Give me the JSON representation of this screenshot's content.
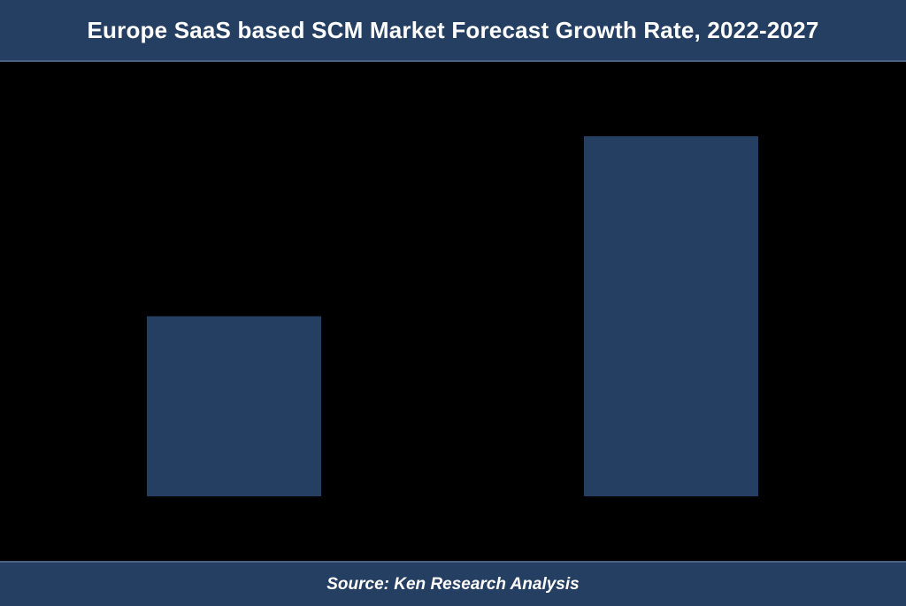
{
  "colors": {
    "background": "#000000",
    "banner": "#253f62",
    "bar": "#253f62",
    "text": "#ffffff"
  },
  "chart_data": {
    "type": "bar",
    "title": "Europe SaaS based SCM Market Forecast Growth Rate, 2022-2027",
    "categories": [
      "",
      ""
    ],
    "values": [
      50,
      100
    ],
    "ylim": [
      0,
      100
    ],
    "xlabel": "",
    "ylabel": "",
    "grid": false,
    "legend": "none"
  },
  "source": {
    "text": "Source: Ken Research Analysis"
  }
}
